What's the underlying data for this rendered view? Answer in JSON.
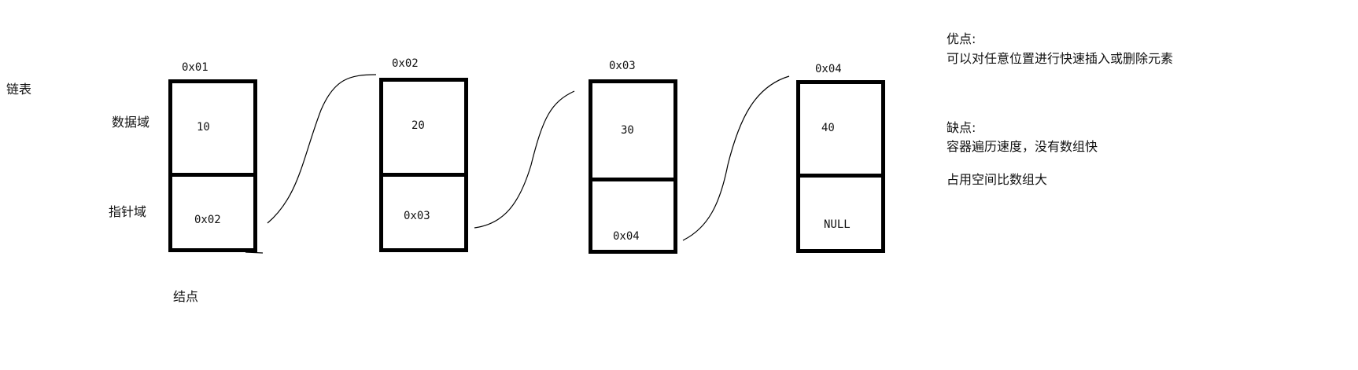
{
  "title": "链表",
  "field_labels": {
    "data_field": "数据域",
    "pointer_field": "指针域",
    "node": "结点"
  },
  "nodes": [
    {
      "address": "0x01",
      "data": "10",
      "next": "0x02"
    },
    {
      "address": "0x02",
      "data": "20",
      "next": "0x03"
    },
    {
      "address": "0x03",
      "data": "30",
      "next": "0x04"
    },
    {
      "address": "0x04",
      "data": "40",
      "next": "NULL"
    }
  ],
  "notes": {
    "pros_title": "优点:",
    "pros_text": "可以对任意位置进行快速插入或删除元素",
    "cons_title": "缺点:",
    "cons_line1": "容器遍历速度，没有数组快",
    "cons_line2": "占用空间比数组大"
  },
  "colors": {
    "stroke": "#000000",
    "background": "#ffffff",
    "text": "#111111"
  }
}
